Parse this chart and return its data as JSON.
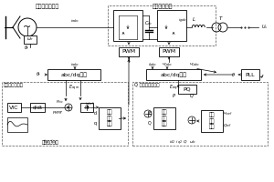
{
  "title": "直驱风力发电机",
  "converter_title": "全功率变流器",
  "machine_ctrl": "机側变流器控制",
  "grid_ctrl": "Q 网側逆变器控制",
  "virtual_ctrl": "虚拟惯量控制",
  "abc_dq": "abc/dq变换",
  "abc_dq2": "abc/dq变换",
  "PLL": "PLL",
  "PWM": "PWM",
  "PWM2": "PWM",
  "current_inner": "电流\n内环\n控制",
  "current_inner2": "电流\n内环\n控制",
  "voltage_outer": "电压\n外环\n控制",
  "PQ": "PQ",
  "PI": "PI",
  "VIC": "VIC",
  "bg_color": "#ffffff",
  "box_color": "#000000",
  "dashed_color": "#555555",
  "line_color": "#000000"
}
